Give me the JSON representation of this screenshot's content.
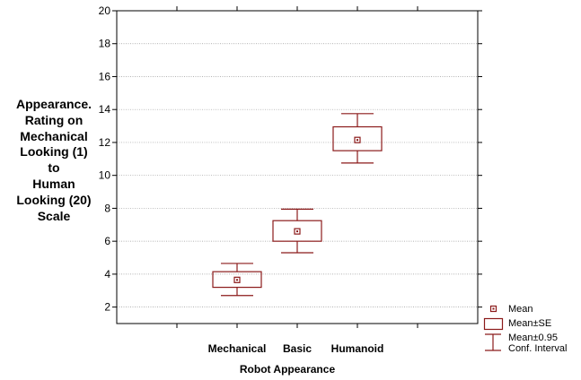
{
  "chart_data": {
    "type": "box",
    "categories": [
      "Mechanical",
      "Basic",
      "Humanoid"
    ],
    "series": [
      {
        "mean": [
          3.65,
          6.6,
          12.15
        ],
        "se_low": [
          3.2,
          6.0,
          11.5
        ],
        "se_high": [
          4.15,
          7.25,
          12.95
        ],
        "ci_low": [
          2.7,
          5.3,
          10.75
        ],
        "ci_high": [
          4.65,
          7.95,
          13.75
        ]
      }
    ],
    "ylim": [
      1,
      20
    ],
    "yticks": [
      "2",
      "4",
      "6",
      "8",
      "10",
      "12",
      "14",
      "16",
      "18",
      "20"
    ],
    "ylabel": [
      "Appearance.",
      "Rating on",
      "Mechanical",
      "Looking (1)",
      "to",
      "Human",
      "Looking (20)",
      "Scale"
    ],
    "xlabel": "Robot Appearance",
    "grid": true,
    "color": "#8b1a1a",
    "legend": {
      "position": "bottom-right",
      "mean": "Mean",
      "se": "Mean±SE",
      "ci_line1": "Mean±0.95",
      "ci_line2": "Conf. Interval"
    }
  }
}
